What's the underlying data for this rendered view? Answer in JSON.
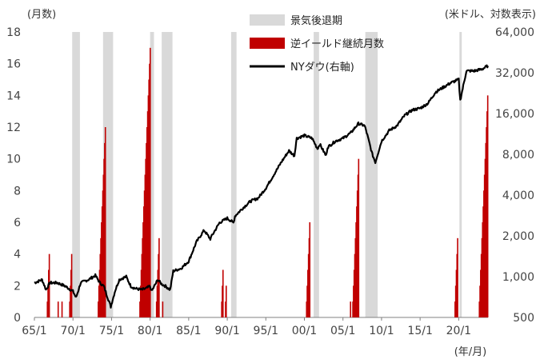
{
  "chart_data": {
    "type": "bar",
    "title": "",
    "left_unit": "(月数)",
    "right_unit": "(米ドル、対数表示)",
    "x_unit": "(年/月)",
    "x_ticks": [
      "65/1",
      "70/1",
      "75/1",
      "80/1",
      "85/1",
      "90/1",
      "95/1",
      "00/1",
      "05/1",
      "10/1",
      "15/1",
      "20/1"
    ],
    "x_start_year": 1965,
    "x_end_year": 2023.8,
    "y_left": {
      "ticks": [
        0,
        2,
        4,
        6,
        8,
        10,
        12,
        14,
        16,
        18
      ],
      "ylim": [
        0,
        18
      ]
    },
    "y_right": {
      "ticks": [
        "500",
        "1,000",
        "2,000",
        "4,000",
        "8,000",
        "16,000",
        "32,000",
        "64,000"
      ],
      "values": [
        500,
        1000,
        2000,
        4000,
        8000,
        16000,
        32000,
        64000
      ],
      "scale": "log"
    },
    "legend": [
      {
        "key": "recession",
        "label": "景気後退期",
        "color": "#d9d9d9"
      },
      {
        "key": "inversion",
        "label": "逆イールド継続月数",
        "color": "#c00000"
      },
      {
        "key": "dow",
        "label": "NYダウ(右軸)",
        "color": "#000000"
      }
    ],
    "recessions": [
      {
        "start": 1969.9,
        "end": 1970.9
      },
      {
        "start": 1973.9,
        "end": 1975.2
      },
      {
        "start": 1980.0,
        "end": 1980.5
      },
      {
        "start": 1981.5,
        "end": 1982.9
      },
      {
        "start": 1990.5,
        "end": 1991.2
      },
      {
        "start": 2001.2,
        "end": 2001.9
      },
      {
        "start": 2007.9,
        "end": 2009.5
      },
      {
        "start": 2020.1,
        "end": 2020.4
      }
    ],
    "inversion_episodes": [
      {
        "start": 1966.6,
        "months": 4
      },
      {
        "start": 1968.0,
        "months": 1
      },
      {
        "start": 1968.5,
        "months": 1
      },
      {
        "start": 1969.5,
        "months": 4
      },
      {
        "start": 1973.2,
        "months": 12
      },
      {
        "start": 1978.6,
        "months": 17
      },
      {
        "start": 1980.75,
        "months": 5
      },
      {
        "start": 1981.55,
        "months": 1
      },
      {
        "start": 1989.2,
        "months": 3
      },
      {
        "start": 1989.7,
        "months": 2
      },
      {
        "start": 2000.2,
        "months": 6
      },
      {
        "start": 2005.9,
        "months": 1
      },
      {
        "start": 2006.2,
        "months": 10
      },
      {
        "start": 2019.45,
        "months": 5
      },
      {
        "start": 2022.6,
        "months": 14
      }
    ],
    "dow_series": {
      "name": "NYダウ(右軸)",
      "x": [
        1965,
        1966,
        1966.5,
        1967,
        1968,
        1969,
        1970,
        1970.4,
        1971,
        1972,
        1972.9,
        1973.5,
        1974,
        1974.9,
        1975.5,
        1976,
        1976.9,
        1977.5,
        1978,
        1978.9,
        1979.5,
        1980,
        1980.2,
        1981,
        1981.5,
        1982,
        1982.6,
        1983,
        1984,
        1985,
        1986,
        1987,
        1987.8,
        1988,
        1989,
        1990,
        1990.8,
        1991,
        1992,
        1993,
        1994,
        1995,
        1996,
        1997,
        1998,
        1998.7,
        1999,
        2000,
        2001,
        2001.7,
        2002,
        2002.8,
        2003,
        2004,
        2005,
        2006,
        2007,
        2007.8,
        2008,
        2008.8,
        2009.2,
        2010,
        2011,
        2012,
        2013,
        2014,
        2015,
        2016,
        2017,
        2018,
        2019,
        2020,
        2020.2,
        2021,
        2022,
        2023,
        2023.8
      ],
      "y": [
        900,
        950,
        800,
        900,
        900,
        850,
        780,
        700,
        900,
        950,
        1020,
        900,
        850,
        600,
        800,
        950,
        1000,
        850,
        820,
        800,
        820,
        850,
        780,
        950,
        880,
        850,
        800,
        1100,
        1150,
        1300,
        1800,
        2200,
        1900,
        2000,
        2500,
        2700,
        2500,
        2800,
        3200,
        3600,
        3800,
        4500,
        5600,
        7000,
        8500,
        7800,
        10500,
        11000,
        10500,
        8800,
        9500,
        7800,
        9000,
        10000,
        10500,
        11500,
        13500,
        13000,
        12000,
        8000,
        7000,
        10000,
        12000,
        13000,
        15500,
        17000,
        17500,
        19000,
        23000,
        25000,
        27000,
        28500,
        20000,
        33000,
        33000,
        34000,
        36000
      ]
    }
  }
}
